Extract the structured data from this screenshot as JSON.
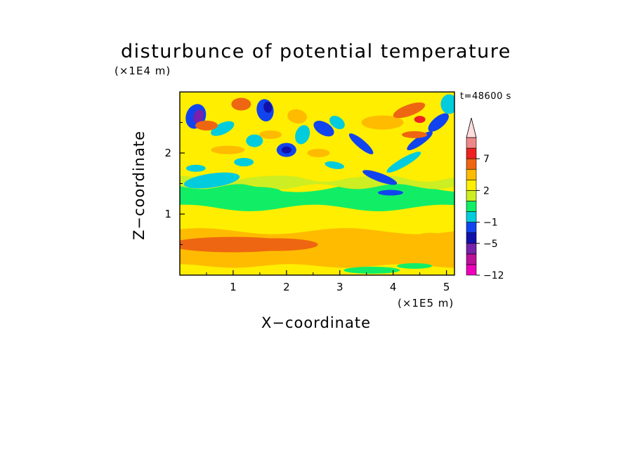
{
  "chart_data": {
    "type": "heatmap",
    "title": "disturbunce of potential temperature",
    "xlabel": "X−coordinate",
    "ylabel": "Z−coordinate",
    "x_unit": "(×1E5 m)",
    "y_unit": "(×1E4 m)",
    "time_label": "t=48600 s",
    "xlim": [
      0,
      5.15
    ],
    "ylim": [
      0,
      3.0
    ],
    "x_ticks": [
      1,
      2,
      3,
      4,
      5
    ],
    "x_tick_labels": [
      "1",
      "2",
      "3",
      "4",
      "5"
    ],
    "y_ticks": [
      1,
      2
    ],
    "y_tick_labels": [
      "1",
      "2"
    ],
    "colorbar": {
      "levels": [
        -12,
        -9,
        -7,
        -5,
        -3,
        -1,
        0,
        1,
        2,
        3,
        5,
        7,
        9,
        11
      ],
      "colors": [
        "#ee00bb",
        "#bb1199",
        "#7722aa",
        "#1111aa",
        "#1144ee",
        "#00ccdd",
        "#11ee66",
        "#ccee22",
        "#ffee00",
        "#ffbb00",
        "#ee6611",
        "#ee2222",
        "#ee8888",
        "#ffdddd"
      ],
      "tick_labels": [
        "−12",
        "−5",
        "−1",
        "2",
        "7"
      ],
      "tick_values": [
        -12,
        -5,
        -1,
        2,
        7
      ],
      "extend": "max"
    },
    "field_description": {
      "lower_layer": "warm disturbance (2 to 5) at z 0.3-0.6E4 m across most of the domain",
      "mid_layer": "near-zero values (0 to 2) at z 0.9-1.5E4 m",
      "upper_layer": "alternating wave pattern with cold cells (-5 to -12) and warm cells (3 to 7) above z 1.8E4 m",
      "wave_center": "V-shaped wave pattern centered near x 3.8E5 m, z 1.3E4 m"
    }
  }
}
